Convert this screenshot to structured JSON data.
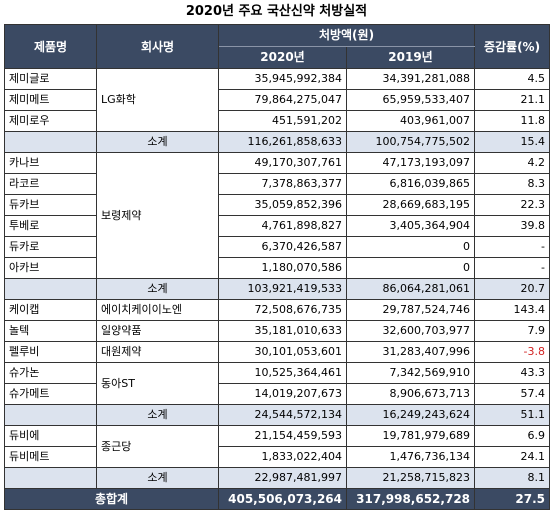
{
  "title": "2020년 주요 국산신약 처방실적",
  "headers": {
    "product": "제품명",
    "company": "회사명",
    "amount": "처방액(원)",
    "y2020": "2020년",
    "y2019": "2019년",
    "growth": "증감률(%)"
  },
  "groups": [
    {
      "company": "LG화학",
      "rows": [
        {
          "product": "제미글로",
          "v2020": "35,945,992,384",
          "v2019": "34,391,281,088",
          "rate": "4.5"
        },
        {
          "product": "제미메트",
          "v2020": "79,864,275,047",
          "v2019": "65,959,533,407",
          "rate": "21.1"
        },
        {
          "product": "제미로우",
          "v2020": "451,591,202",
          "v2019": "403,961,007",
          "rate": "11.8"
        }
      ],
      "subtotal": {
        "label": "소계",
        "v2020": "116,261,858,633",
        "v2019": "100,754,775,502",
        "rate": "15.4"
      }
    },
    {
      "company": "보령제약",
      "rows": [
        {
          "product": "카나브",
          "v2020": "49,170,307,761",
          "v2019": "47,173,193,097",
          "rate": "4.2"
        },
        {
          "product": "라코르",
          "v2020": "7,378,863,377",
          "v2019": "6,816,039,865",
          "rate": "8.3"
        },
        {
          "product": "듀카브",
          "v2020": "35,059,852,396",
          "v2019": "28,669,683,195",
          "rate": "22.3"
        },
        {
          "product": "투베로",
          "v2020": "4,761,898,827",
          "v2019": "3,405,364,904",
          "rate": "39.8"
        },
        {
          "product": "듀카로",
          "v2020": "6,370,426,587",
          "v2019": "0",
          "rate": "-"
        },
        {
          "product": "아카브",
          "v2020": "1,180,070,586",
          "v2019": "0",
          "rate": "-"
        }
      ],
      "subtotal": {
        "label": "소계",
        "v2020": "103,921,419,533",
        "v2019": "86,064,281,061",
        "rate": "20.7"
      }
    },
    {
      "company": "에이치케이이노엔",
      "rows": [
        {
          "product": "케이캡",
          "v2020": "72,508,676,735",
          "v2019": "29,787,524,746",
          "rate": "143.4"
        }
      ]
    },
    {
      "company": "일양약품",
      "rows": [
        {
          "product": "놀텍",
          "v2020": "35,181,010,633",
          "v2019": "32,600,703,977",
          "rate": "7.9"
        }
      ]
    },
    {
      "company": "대원제약",
      "rows": [
        {
          "product": "펠루비",
          "v2020": "30,101,053,601",
          "v2019": "31,283,407,996",
          "rate": "-3.8",
          "negative": true
        }
      ]
    },
    {
      "company": "동아ST",
      "rows": [
        {
          "product": "슈가논",
          "v2020": "10,525,364,461",
          "v2019": "7,342,569,910",
          "rate": "43.3"
        },
        {
          "product": "슈가메트",
          "v2020": "14,019,207,673",
          "v2019": "8,906,673,713",
          "rate": "57.4"
        }
      ],
      "subtotal": {
        "label": "소계",
        "v2020": "24,544,572,134",
        "v2019": "16,249,243,624",
        "rate": "51.1"
      }
    },
    {
      "company": "종근당",
      "rows": [
        {
          "product": "듀비에",
          "v2020": "21,154,459,593",
          "v2019": "19,781,979,689",
          "rate": "6.9"
        },
        {
          "product": "듀비메트",
          "v2020": "1,833,022,404",
          "v2019": "1,476,736,134",
          "rate": "24.1"
        }
      ],
      "subtotal": {
        "label": "소계",
        "v2020": "22,987,481,997",
        "v2019": "21,258,715,823",
        "rate": "8.1"
      }
    }
  ],
  "total": {
    "label": "총합계",
    "v2020": "405,506,073,264",
    "v2019": "317,998,652,728",
    "rate": "27.5"
  },
  "colors": {
    "header_bg": "#3b4a63",
    "subtotal_bg": "#dce3ee",
    "negative": "#d12222"
  }
}
